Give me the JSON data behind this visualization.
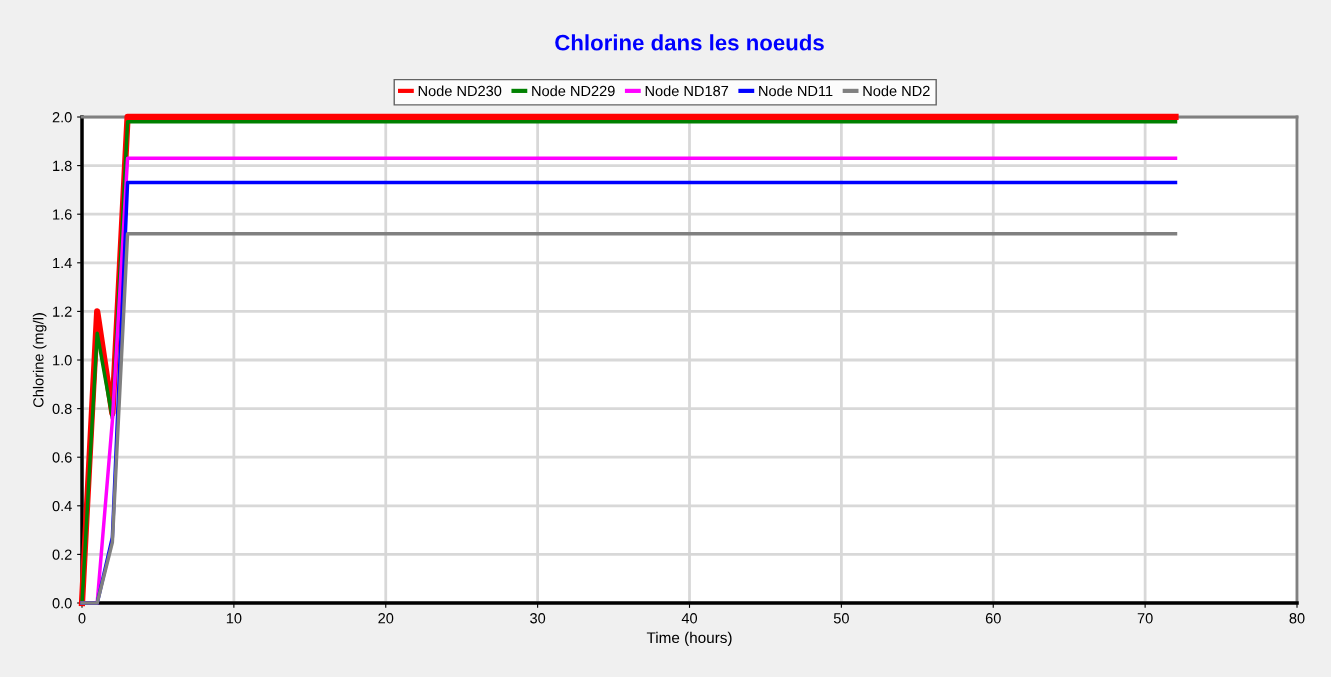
{
  "chart_data": {
    "type": "line",
    "title": "Chlorine dans les noeuds",
    "xlabel": "Time (hours)",
    "ylabel": "Chlorine (mg/l)",
    "x": [
      0,
      1,
      2,
      3,
      72
    ],
    "series": [
      {
        "name": "Node ND230",
        "color": "#ff0000",
        "values": [
          0,
          1.2,
          0.78,
          2.0,
          2.0
        ]
      },
      {
        "name": "Node ND229",
        "color": "#008000",
        "values": [
          0,
          1.11,
          0.76,
          1.98,
          1.98
        ]
      },
      {
        "name": "Node ND187",
        "color": "#ff00ff",
        "values": [
          0,
          0,
          0.75,
          1.83,
          1.83
        ]
      },
      {
        "name": "Node ND11",
        "color": "#0000ff",
        "values": [
          0,
          0,
          0.27,
          1.73,
          1.73
        ]
      },
      {
        "name": "Node ND2",
        "color": "#808080",
        "values": [
          0,
          0,
          0.25,
          1.52,
          1.52
        ]
      }
    ],
    "xlim": [
      0,
      80
    ],
    "xticks": [
      0,
      10,
      20,
      30,
      40,
      50,
      60,
      70,
      80
    ],
    "ylim": [
      0,
      2.0
    ],
    "yticks": [
      {
        "value": 0,
        "label": "0.0"
      },
      {
        "value": 0.2,
        "label": "0.2"
      },
      {
        "value": 0.4,
        "label": "0.4"
      },
      {
        "value": 0.6,
        "label": "0.6"
      },
      {
        "value": 0.8,
        "label": "0.8"
      },
      {
        "value": 1.0,
        "label": "1.0"
      },
      {
        "value": 1.2,
        "label": "1.2"
      },
      {
        "value": 1.4,
        "label": "1.4"
      },
      {
        "value": 1.6,
        "label": "1.6"
      },
      {
        "value": 1.8,
        "label": "1.8"
      },
      {
        "value": 2.0,
        "label": "2.0"
      }
    ],
    "grid": true,
    "legend": "top",
    "marker": "none",
    "line_style": "solid"
  }
}
